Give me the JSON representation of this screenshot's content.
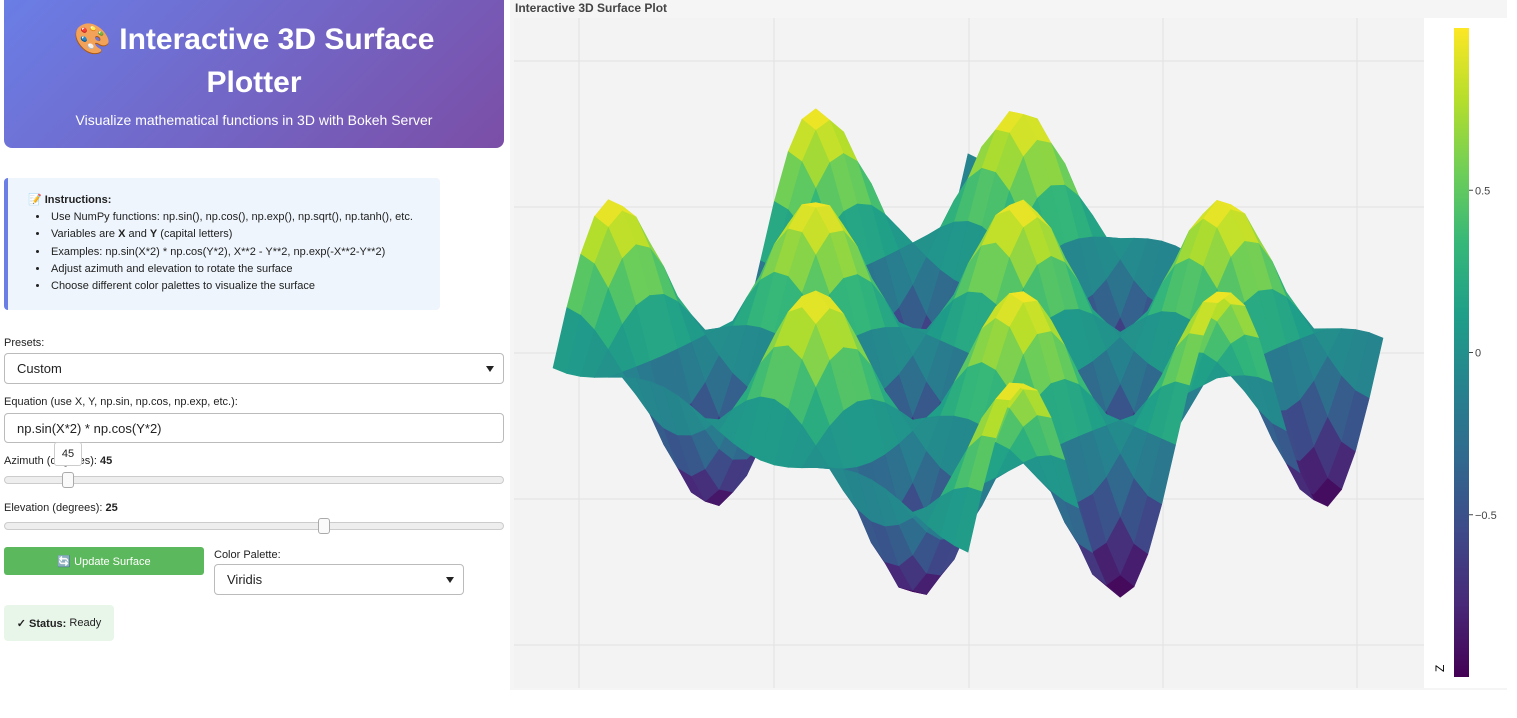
{
  "header": {
    "title": "🎨 Interactive 3D Surface Plotter",
    "subtitle": "Visualize mathematical functions in 3D with Bokeh Server"
  },
  "instructions": {
    "title": "📝 Instructions:",
    "items": [
      "Use NumPy functions: np.sin(), np.cos(), np.exp(), np.sqrt(), np.tanh(), etc.",
      [
        "Variables are ",
        "X",
        " and ",
        "Y",
        " (capital letters)"
      ],
      "Examples: np.sin(X*2) * np.cos(Y*2), X**2 - Y**2, np.exp(-X**2-Y**2)",
      "Adjust azimuth and elevation to rotate the surface",
      "Choose different color palettes to visualize the surface"
    ]
  },
  "controls": {
    "presets": {
      "label": "Presets:",
      "value": "Custom"
    },
    "equation": {
      "label": "Equation (use X, Y, np.sin, np.cos, np.exp, etc.):",
      "value": "np.sin(X*2) * np.cos(Y*2)"
    },
    "azimuth": {
      "label": "Azimuth (degrees):",
      "value": 45,
      "range": [
        0,
        360
      ]
    },
    "elevation": {
      "label": "Elevation (degrees):",
      "value": 25,
      "range": [
        -90,
        90
      ]
    },
    "update_button": "🔄 Update Surface",
    "palette": {
      "label": "Color Palette:",
      "value": "Viridis"
    },
    "status": {
      "label": "✓ Status:",
      "text": "Ready"
    }
  },
  "plot": {
    "title": "Interactive 3D Surface Plot",
    "colorbar": {
      "title": "Z",
      "range": [
        -1,
        1
      ],
      "ticks": [
        0.5,
        0,
        {
          "value": -0.5,
          "label": "−0.5"
        }
      ]
    }
  }
}
